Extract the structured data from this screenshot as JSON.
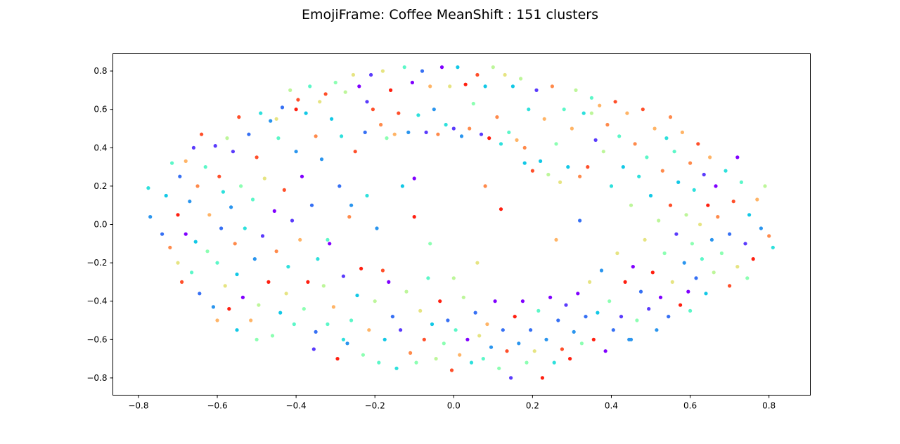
{
  "chart_data": {
    "type": "scatter",
    "title": "EmojiFrame: Coffee MeanShift : 151 clusters",
    "xlabel": "",
    "ylabel": "",
    "xlim": [
      -0.865,
      0.905
    ],
    "ylim": [
      -0.89,
      0.89
    ],
    "xticks": [
      -0.8,
      -0.6,
      -0.4,
      -0.2,
      0.0,
      0.2,
      0.4,
      0.6,
      0.8
    ],
    "xtick_labels": [
      "−0.8",
      "−0.6",
      "−0.4",
      "−0.2",
      "0.0",
      "0.2",
      "0.4",
      "0.6",
      "0.8"
    ],
    "yticks": [
      -0.8,
      -0.6,
      -0.4,
      -0.2,
      0.0,
      0.2,
      0.4,
      0.6,
      0.8
    ],
    "ytick_labels": [
      "−0.8",
      "−0.6",
      "−0.4",
      "−0.2",
      "0.0",
      "0.2",
      "0.4",
      "0.6",
      "0.8"
    ],
    "grid": false,
    "legend": "none",
    "colormap": "rainbow",
    "palette": [
      "#8000ff",
      "#5a3bfc",
      "#3670f4",
      "#2a95ee",
      "#12c8e6",
      "#2ee0dc",
      "#5cf7c8",
      "#8cffb2",
      "#bdf69a",
      "#e6e482",
      "#ffb466",
      "#ff8a4b",
      "#ff4f2a",
      "#ff1f10"
    ],
    "n_clusters": 151,
    "points": [
      [
        -0.775,
        0.19,
        5
      ],
      [
        -0.77,
        0.04,
        3
      ],
      [
        -0.74,
        -0.05,
        2
      ],
      [
        -0.73,
        0.15,
        4
      ],
      [
        -0.72,
        -0.12,
        11
      ],
      [
        -0.715,
        0.32,
        6
      ],
      [
        -0.7,
        -0.2,
        9
      ],
      [
        -0.7,
        0.05,
        13
      ],
      [
        -0.695,
        0.25,
        2
      ],
      [
        -0.69,
        -0.3,
        12
      ],
      [
        -0.68,
        0.33,
        10
      ],
      [
        -0.68,
        -0.05,
        0
      ],
      [
        -0.67,
        0.12,
        3
      ],
      [
        -0.665,
        -0.25,
        6
      ],
      [
        -0.66,
        0.4,
        1
      ],
      [
        -0.655,
        -0.09,
        4
      ],
      [
        -0.65,
        0.2,
        11
      ],
      [
        -0.645,
        -0.36,
        2
      ],
      [
        -0.64,
        0.47,
        12
      ],
      [
        -0.63,
        0.3,
        6
      ],
      [
        -0.625,
        -0.14,
        7
      ],
      [
        -0.62,
        0.05,
        10
      ],
      [
        -0.61,
        -0.43,
        3
      ],
      [
        -0.605,
        0.41,
        1
      ],
      [
        -0.6,
        -0.2,
        6
      ],
      [
        -0.595,
        0.25,
        12
      ],
      [
        -0.59,
        -0.02,
        2
      ],
      [
        -0.585,
        0.17,
        5
      ],
      [
        -0.58,
        -0.32,
        9
      ],
      [
        -0.575,
        0.45,
        8
      ],
      [
        -0.57,
        -0.44,
        13
      ],
      [
        -0.565,
        0.09,
        3
      ],
      [
        -0.56,
        0.38,
        1
      ],
      [
        -0.555,
        -0.1,
        11
      ],
      [
        -0.55,
        -0.26,
        4
      ],
      [
        -0.545,
        0.56,
        12
      ],
      [
        -0.54,
        0.2,
        7
      ],
      [
        -0.535,
        -0.38,
        0
      ],
      [
        -0.53,
        -0.02,
        5
      ],
      [
        -0.52,
        0.47,
        2
      ],
      [
        -0.515,
        -0.5,
        10
      ],
      [
        -0.51,
        0.13,
        6
      ],
      [
        -0.505,
        -0.18,
        3
      ],
      [
        -0.5,
        0.35,
        12
      ],
      [
        -0.495,
        -0.42,
        8
      ],
      [
        -0.49,
        0.58,
        5
      ],
      [
        -0.485,
        -0.06,
        1
      ],
      [
        -0.48,
        0.24,
        9
      ],
      [
        -0.47,
        -0.3,
        13
      ],
      [
        -0.465,
        0.54,
        3
      ],
      [
        -0.46,
        -0.58,
        7
      ],
      [
        -0.455,
        0.07,
        0
      ],
      [
        -0.45,
        -0.14,
        11
      ],
      [
        -0.445,
        0.45,
        6
      ],
      [
        -0.44,
        -0.46,
        4
      ],
      [
        -0.435,
        0.61,
        2
      ],
      [
        -0.43,
        0.18,
        12
      ],
      [
        -0.425,
        -0.36,
        9
      ],
      [
        -0.42,
        -0.22,
        5
      ],
      [
        -0.415,
        0.7,
        8
      ],
      [
        -0.41,
        0.02,
        1
      ],
      [
        -0.405,
        -0.52,
        6
      ],
      [
        -0.4,
        0.38,
        3
      ],
      [
        -0.395,
        0.65,
        12
      ],
      [
        -0.39,
        -0.08,
        10
      ],
      [
        -0.385,
        0.25,
        0
      ],
      [
        -0.38,
        -0.44,
        7
      ],
      [
        -0.375,
        0.58,
        4
      ],
      [
        -0.37,
        -0.3,
        13
      ],
      [
        -0.365,
        0.72,
        6
      ],
      [
        -0.36,
        0.1,
        2
      ],
      [
        -0.355,
        -0.65,
        1
      ],
      [
        -0.35,
        0.46,
        11
      ],
      [
        -0.345,
        -0.18,
        5
      ],
      [
        -0.34,
        0.64,
        9
      ],
      [
        -0.335,
        0.34,
        3
      ],
      [
        -0.33,
        -0.32,
        8
      ],
      [
        -0.325,
        0.68,
        12
      ],
      [
        -0.32,
        -0.52,
        6
      ],
      [
        -0.315,
        -0.1,
        0
      ],
      [
        -0.31,
        0.55,
        4
      ],
      [
        -0.305,
        -0.43,
        10
      ],
      [
        -0.3,
        0.74,
        7
      ],
      [
        -0.295,
        -0.7,
        13
      ],
      [
        -0.29,
        0.2,
        2
      ],
      [
        -0.285,
        0.46,
        5
      ],
      [
        -0.28,
        -0.27,
        1
      ],
      [
        -0.275,
        0.69,
        8
      ],
      [
        -0.27,
        -0.62,
        3
      ],
      [
        -0.265,
        0.04,
        11
      ],
      [
        -0.26,
        -0.5,
        6
      ],
      [
        -0.255,
        0.78,
        9
      ],
      [
        -0.25,
        0.38,
        12
      ],
      [
        -0.245,
        -0.37,
        4
      ],
      [
        -0.24,
        0.72,
        0
      ],
      [
        -0.235,
        -0.23,
        13
      ],
      [
        -0.23,
        -0.68,
        7
      ],
      [
        -0.225,
        0.48,
        2
      ],
      [
        -0.22,
        0.15,
        5
      ],
      [
        -0.215,
        -0.55,
        10
      ],
      [
        -0.21,
        0.78,
        1
      ],
      [
        -0.205,
        0.6,
        12
      ],
      [
        -0.2,
        -0.4,
        8
      ],
      [
        -0.195,
        -0.02,
        3
      ],
      [
        -0.19,
        -0.72,
        6
      ],
      [
        -0.185,
        0.52,
        11
      ],
      [
        -0.18,
        0.8,
        9
      ],
      [
        -0.175,
        -0.6,
        4
      ],
      [
        -0.17,
        0.45,
        7
      ],
      [
        -0.165,
        -0.3,
        0
      ],
      [
        -0.16,
        0.7,
        13
      ],
      [
        -0.155,
        -0.48,
        2
      ],
      [
        -0.15,
        0.47,
        10
      ],
      [
        -0.145,
        -0.75,
        5
      ],
      [
        -0.14,
        0.58,
        12
      ],
      [
        -0.135,
        -0.55,
        1
      ],
      [
        -0.13,
        0.2,
        4
      ],
      [
        -0.125,
        0.82,
        6
      ],
      [
        -0.12,
        -0.35,
        8
      ],
      [
        -0.115,
        0.48,
        3
      ],
      [
        -0.11,
        -0.67,
        11
      ],
      [
        -0.105,
        0.74,
        0
      ],
      [
        -0.1,
        0.04,
        13
      ],
      [
        -0.095,
        -0.72,
        7
      ],
      [
        -0.09,
        0.57,
        5
      ],
      [
        -0.085,
        -0.45,
        9
      ],
      [
        -0.08,
        0.8,
        2
      ],
      [
        -0.075,
        -0.6,
        12
      ],
      [
        -0.07,
        0.48,
        1
      ],
      [
        -0.065,
        -0.28,
        6
      ],
      [
        -0.06,
        0.72,
        10
      ],
      [
        -0.055,
        -0.52,
        4
      ],
      [
        -0.05,
        0.6,
        3
      ],
      [
        -0.045,
        -0.7,
        8
      ],
      [
        -0.04,
        0.47,
        11
      ],
      [
        -0.035,
        -0.4,
        13
      ],
      [
        -0.03,
        0.82,
        0
      ],
      [
        -0.025,
        -0.62,
        7
      ],
      [
        -0.02,
        0.52,
        5
      ],
      [
        -0.015,
        -0.5,
        2
      ],
      [
        -0.01,
        0.72,
        9
      ],
      [
        -0.005,
        -0.76,
        12
      ],
      [
        0.0,
        0.5,
        1
      ],
      [
        0.005,
        -0.55,
        6
      ],
      [
        0.01,
        0.82,
        4
      ],
      [
        0.015,
        -0.68,
        10
      ],
      [
        0.02,
        0.46,
        3
      ],
      [
        0.025,
        -0.38,
        8
      ],
      [
        0.03,
        0.73,
        13
      ],
      [
        0.035,
        -0.6,
        0
      ],
      [
        0.04,
        0.5,
        11
      ],
      [
        0.045,
        -0.72,
        5
      ],
      [
        0.05,
        0.63,
        7
      ],
      [
        0.055,
        -0.46,
        2
      ],
      [
        0.06,
        0.78,
        12
      ],
      [
        0.065,
        -0.58,
        9
      ],
      [
        0.07,
        0.47,
        1
      ],
      [
        0.075,
        -0.7,
        6
      ],
      [
        0.08,
        0.72,
        4
      ],
      [
        0.085,
        -0.52,
        10
      ],
      [
        0.09,
        0.45,
        13
      ],
      [
        0.095,
        -0.64,
        3
      ],
      [
        0.1,
        0.82,
        8
      ],
      [
        0.105,
        -0.4,
        0
      ],
      [
        0.11,
        0.56,
        11
      ],
      [
        0.115,
        -0.75,
        7
      ],
      [
        0.12,
        0.42,
        5
      ],
      [
        0.125,
        -0.55,
        2
      ],
      [
        0.13,
        0.78,
        9
      ],
      [
        0.135,
        -0.66,
        12
      ],
      [
        0.14,
        0.48,
        6
      ],
      [
        0.145,
        -0.8,
        1
      ],
      [
        0.15,
        0.72,
        4
      ],
      [
        0.155,
        -0.48,
        13
      ],
      [
        0.16,
        0.44,
        10
      ],
      [
        0.165,
        -0.62,
        3
      ],
      [
        0.17,
        0.76,
        8
      ],
      [
        0.175,
        -0.4,
        0
      ],
      [
        0.18,
        0.4,
        11
      ],
      [
        0.185,
        -0.72,
        7
      ],
      [
        0.19,
        0.6,
        5
      ],
      [
        0.195,
        -0.55,
        2
      ],
      [
        0.2,
        0.28,
        12
      ],
      [
        0.205,
        -0.66,
        9
      ],
      [
        0.21,
        0.7,
        1
      ],
      [
        0.215,
        -0.45,
        6
      ],
      [
        0.22,
        0.33,
        4
      ],
      [
        0.225,
        -0.8,
        13
      ],
      [
        0.23,
        0.55,
        10
      ],
      [
        0.235,
        -0.6,
        3
      ],
      [
        0.24,
        0.26,
        8
      ],
      [
        0.245,
        -0.38,
        0
      ],
      [
        0.25,
        0.72,
        11
      ],
      [
        0.255,
        -0.72,
        5
      ],
      [
        0.26,
        0.42,
        7
      ],
      [
        0.265,
        -0.5,
        2
      ],
      [
        0.27,
        0.22,
        9
      ],
      [
        0.275,
        -0.65,
        12
      ],
      [
        0.28,
        0.6,
        6
      ],
      [
        0.285,
        -0.42,
        1
      ],
      [
        0.29,
        0.3,
        4
      ],
      [
        0.295,
        -0.7,
        13
      ],
      [
        0.3,
        0.5,
        10
      ],
      [
        0.305,
        -0.56,
        3
      ],
      [
        0.31,
        0.7,
        8
      ],
      [
        0.315,
        -0.36,
        0
      ],
      [
        0.32,
        0.25,
        11
      ],
      [
        0.325,
        -0.62,
        7
      ],
      [
        0.33,
        0.58,
        5
      ],
      [
        0.335,
        -0.48,
        2
      ],
      [
        0.34,
        0.3,
        12
      ],
      [
        0.345,
        -0.3,
        9
      ],
      [
        0.35,
        0.66,
        6
      ],
      [
        0.355,
        -0.6,
        13
      ],
      [
        0.36,
        0.44,
        1
      ],
      [
        0.365,
        -0.46,
        4
      ],
      [
        0.37,
        0.62,
        10
      ],
      [
        0.375,
        -0.24,
        3
      ],
      [
        0.38,
        0.38,
        8
      ],
      [
        0.385,
        -0.66,
        0
      ],
      [
        0.39,
        0.52,
        11
      ],
      [
        0.395,
        -0.4,
        7
      ],
      [
        0.4,
        0.2,
        5
      ],
      [
        0.405,
        -0.55,
        2
      ],
      [
        0.41,
        0.64,
        12
      ],
      [
        0.415,
        -0.15,
        9
      ],
      [
        0.42,
        0.46,
        6
      ],
      [
        0.425,
        -0.48,
        1
      ],
      [
        0.43,
        0.3,
        4
      ],
      [
        0.435,
        -0.3,
        13
      ],
      [
        0.44,
        0.58,
        10
      ],
      [
        0.445,
        -0.6,
        3
      ],
      [
        0.45,
        0.1,
        8
      ],
      [
        0.455,
        -0.22,
        0
      ],
      [
        0.46,
        0.42,
        11
      ],
      [
        0.465,
        -0.5,
        7
      ],
      [
        0.47,
        0.25,
        5
      ],
      [
        0.475,
        -0.35,
        2
      ],
      [
        0.48,
        0.6,
        12
      ],
      [
        0.485,
        -0.08,
        9
      ],
      [
        0.49,
        0.35,
        6
      ],
      [
        0.495,
        -0.44,
        1
      ],
      [
        0.5,
        0.15,
        4
      ],
      [
        0.505,
        -0.25,
        13
      ],
      [
        0.51,
        0.5,
        10
      ],
      [
        0.515,
        -0.55,
        3
      ],
      [
        0.52,
        0.02,
        8
      ],
      [
        0.525,
        -0.38,
        0
      ],
      [
        0.53,
        0.28,
        11
      ],
      [
        0.535,
        -0.15,
        7
      ],
      [
        0.54,
        0.45,
        5
      ],
      [
        0.545,
        -0.48,
        2
      ],
      [
        0.55,
        0.1,
        12
      ],
      [
        0.555,
        -0.3,
        9
      ],
      [
        0.56,
        0.38,
        6
      ],
      [
        0.565,
        -0.05,
        1
      ],
      [
        0.57,
        0.22,
        4
      ],
      [
        0.575,
        -0.42,
        13
      ],
      [
        0.58,
        0.48,
        10
      ],
      [
        0.585,
        -0.2,
        3
      ],
      [
        0.59,
        0.05,
        8
      ],
      [
        0.595,
        -0.35,
        0
      ],
      [
        0.6,
        0.32,
        11
      ],
      [
        0.605,
        -0.1,
        7
      ],
      [
        0.61,
        0.18,
        5
      ],
      [
        0.615,
        -0.28,
        2
      ],
      [
        0.62,
        0.42,
        12
      ],
      [
        0.625,
        0.0,
        9
      ],
      [
        0.63,
        -0.18,
        6
      ],
      [
        0.635,
        0.26,
        1
      ],
      [
        0.64,
        -0.36,
        4
      ],
      [
        0.645,
        0.1,
        13
      ],
      [
        0.65,
        0.35,
        10
      ],
      [
        0.655,
        -0.08,
        3
      ],
      [
        0.66,
        -0.25,
        8
      ],
      [
        0.665,
        0.2,
        0
      ],
      [
        0.67,
        0.04,
        11
      ],
      [
        0.68,
        -0.15,
        7
      ],
      [
        0.69,
        0.28,
        5
      ],
      [
        0.7,
        -0.05,
        2
      ],
      [
        0.71,
        0.12,
        12
      ],
      [
        0.72,
        -0.22,
        9
      ],
      [
        0.73,
        0.22,
        6
      ],
      [
        0.74,
        -0.1,
        1
      ],
      [
        0.75,
        0.05,
        4
      ],
      [
        0.76,
        -0.18,
        13
      ],
      [
        0.77,
        0.13,
        10
      ],
      [
        0.78,
        -0.02,
        3
      ],
      [
        0.79,
        0.2,
        8
      ],
      [
        0.8,
        -0.06,
        11
      ],
      [
        0.81,
        -0.12,
        5
      ],
      [
        0.745,
        -0.28,
        7
      ],
      [
        0.72,
        0.35,
        0
      ],
      [
        0.7,
        -0.32,
        12
      ],
      [
        -0.6,
        -0.5,
        10
      ],
      [
        -0.55,
        -0.55,
        4
      ],
      [
        -0.5,
        -0.6,
        7
      ],
      [
        -0.45,
        0.55,
        9
      ],
      [
        -0.4,
        0.6,
        13
      ],
      [
        -0.35,
        -0.56,
        2
      ],
      [
        -0.28,
        -0.6,
        5
      ],
      [
        -0.22,
        0.64,
        1
      ],
      [
        0.35,
        0.58,
        8
      ],
      [
        0.45,
        -0.6,
        3
      ],
      [
        0.55,
        0.56,
        11
      ],
      [
        0.6,
        -0.45,
        6
      ],
      [
        -0.18,
        -0.24,
        12
      ],
      [
        -0.1,
        0.24,
        0
      ],
      [
        0.06,
        -0.2,
        9
      ],
      [
        0.18,
        0.32,
        4
      ],
      [
        -0.06,
        -0.1,
        7
      ],
      [
        0.12,
        0.08,
        13
      ],
      [
        -0.26,
        0.1,
        3
      ],
      [
        0.26,
        -0.08,
        10
      ],
      [
        -0.32,
        -0.08,
        6
      ],
      [
        0.32,
        0.02,
        2
      ],
      [
        0.0,
        -0.28,
        8
      ],
      [
        0.08,
        0.2,
        11
      ]
    ]
  }
}
